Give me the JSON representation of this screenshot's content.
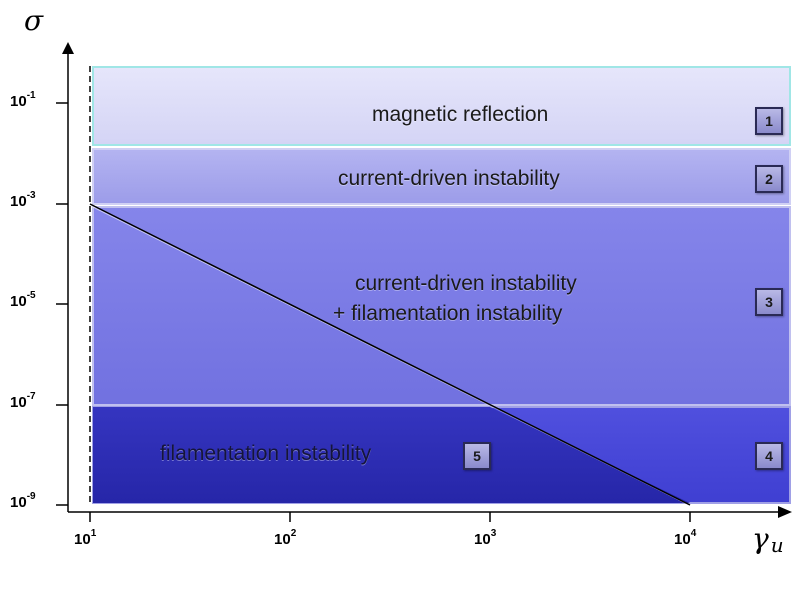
{
  "axes": {
    "y_title": "σ",
    "x_title": "γ",
    "x_title_sub": "u",
    "y_ticks": [
      {
        "base": "10",
        "exp": "-1"
      },
      {
        "base": "10",
        "exp": "-3"
      },
      {
        "base": "10",
        "exp": "-5"
      },
      {
        "base": "10",
        "exp": "-7"
      },
      {
        "base": "10",
        "exp": "-9"
      }
    ],
    "x_ticks": [
      {
        "base": "10",
        "exp": "1"
      },
      {
        "base": "10",
        "exp": "2"
      },
      {
        "base": "10",
        "exp": "3"
      },
      {
        "base": "10",
        "exp": "4"
      }
    ],
    "scale": "log-log",
    "x_range": [
      1,
      5
    ],
    "y_range": [
      -9,
      -0.3
    ]
  },
  "regions": [
    {
      "id": "1",
      "label": "magnetic reflection",
      "color": "#dcdcf8"
    },
    {
      "id": "2",
      "label": "current-driven instability",
      "color": "#a9a9ee"
    },
    {
      "id": "3",
      "label_line1": "current-driven instability",
      "label_line2": "+ filamentation instability",
      "color": "#7b7be6"
    },
    {
      "id": "4",
      "color": "#4a4ad8"
    },
    {
      "id": "5",
      "label": "filamentation instability",
      "color": "#2e2eb8"
    }
  ],
  "boundaries": {
    "diagonal_line": {
      "from": [
        1,
        -3
      ],
      "to": [
        4,
        -9
      ]
    },
    "dashed_line_x": 1
  }
}
